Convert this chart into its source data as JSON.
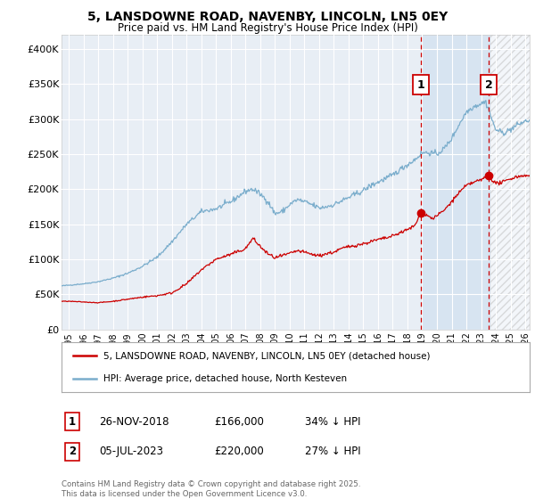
{
  "title": "5, LANSDOWNE ROAD, NAVENBY, LINCOLN, LN5 0EY",
  "subtitle": "Price paid vs. HM Land Registry's House Price Index (HPI)",
  "ylim": [
    0,
    420000
  ],
  "xlim_start": 1994.5,
  "xlim_end": 2026.3,
  "background_color": "#ffffff",
  "plot_bg_color": "#e8eef5",
  "grid_color": "#ffffff",
  "red_line_color": "#cc0000",
  "blue_line_color": "#7aadcc",
  "highlight_color": "#d0e0f0",
  "hatch_color": "#cccccc",
  "marker1_date": 2018.91,
  "marker2_date": 2023.51,
  "marker1_value": 166000,
  "marker2_value": 220000,
  "legend_label_red": "5, LANSDOWNE ROAD, NAVENBY, LINCOLN, LN5 0EY (detached house)",
  "legend_label_blue": "HPI: Average price, detached house, North Kesteven",
  "footer": "Contains HM Land Registry data © Crown copyright and database right 2025.\nThis data is licensed under the Open Government Licence v3.0.",
  "ytick_labels": [
    "£0",
    "£50K",
    "£100K",
    "£150K",
    "£200K",
    "£250K",
    "£300K",
    "£350K",
    "£400K"
  ],
  "ytick_values": [
    0,
    50000,
    100000,
    150000,
    200000,
    250000,
    300000,
    350000,
    400000
  ],
  "ann1_num": "1",
  "ann1_date": "26-NOV-2018",
  "ann1_price": "£166,000",
  "ann1_hpi": "34% ↓ HPI",
  "ann2_num": "2",
  "ann2_date": "05-JUL-2023",
  "ann2_price": "£220,000",
  "ann2_hpi": "27% ↓ HPI"
}
